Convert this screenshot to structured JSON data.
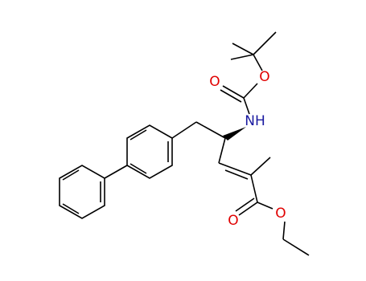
{
  "atoms": {
    "carbonyl_o1": "O",
    "ester_o1": "O",
    "amine": "NH",
    "carbonyl_o2": "O",
    "ester_o2": "O"
  }
}
